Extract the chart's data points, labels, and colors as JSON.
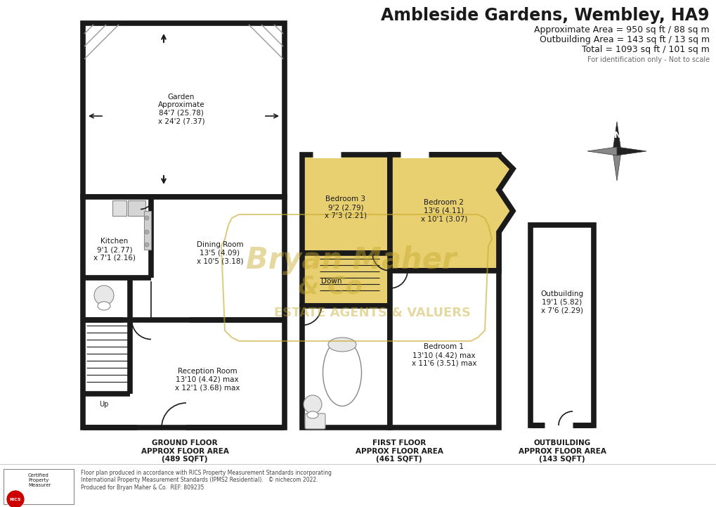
{
  "title": "Ambleside Gardens, Wembley, HA9",
  "area_line1": "Approximate Area = 950 sq ft / 88 sq m",
  "area_line2": "Outbuilding Area = 143 sq ft / 13 sq m",
  "area_line3": "Total = 1093 sq ft / 101 sq m",
  "area_note": "For identification only - Not to scale",
  "bg_color": "#ffffff",
  "wall_color": "#1a1a1a",
  "floor_fill": "#f5f0e8",
  "yellow_fill": "#e8d070",
  "wall_lw": 5.5,
  "ground_floor_label": "GROUND FLOOR\nAPPROX FLOOR AREA\n(489 SQFT)",
  "first_floor_label": "FIRST FLOOR\nAPPROX FLOOR AREA\n(461 SQFT)",
  "outbuilding_label": "OUTBUILDING\nAPPROX FLOOR AREA\n(143 SQFT)",
  "footer_text": "Floor plan produced in accordance with RICS Property Measurement Standards incorporating\nInternational Property Measurement Standards (IPMS2 Residential).   © nichecom 2022.\nProduced for Bryan Maher & Co.  REF: 809235",
  "watermark_line1": "Bryan Maher",
  "watermark_line2": "& Co",
  "watermark_line3": "ESTATE AGENTS & VALUERS"
}
